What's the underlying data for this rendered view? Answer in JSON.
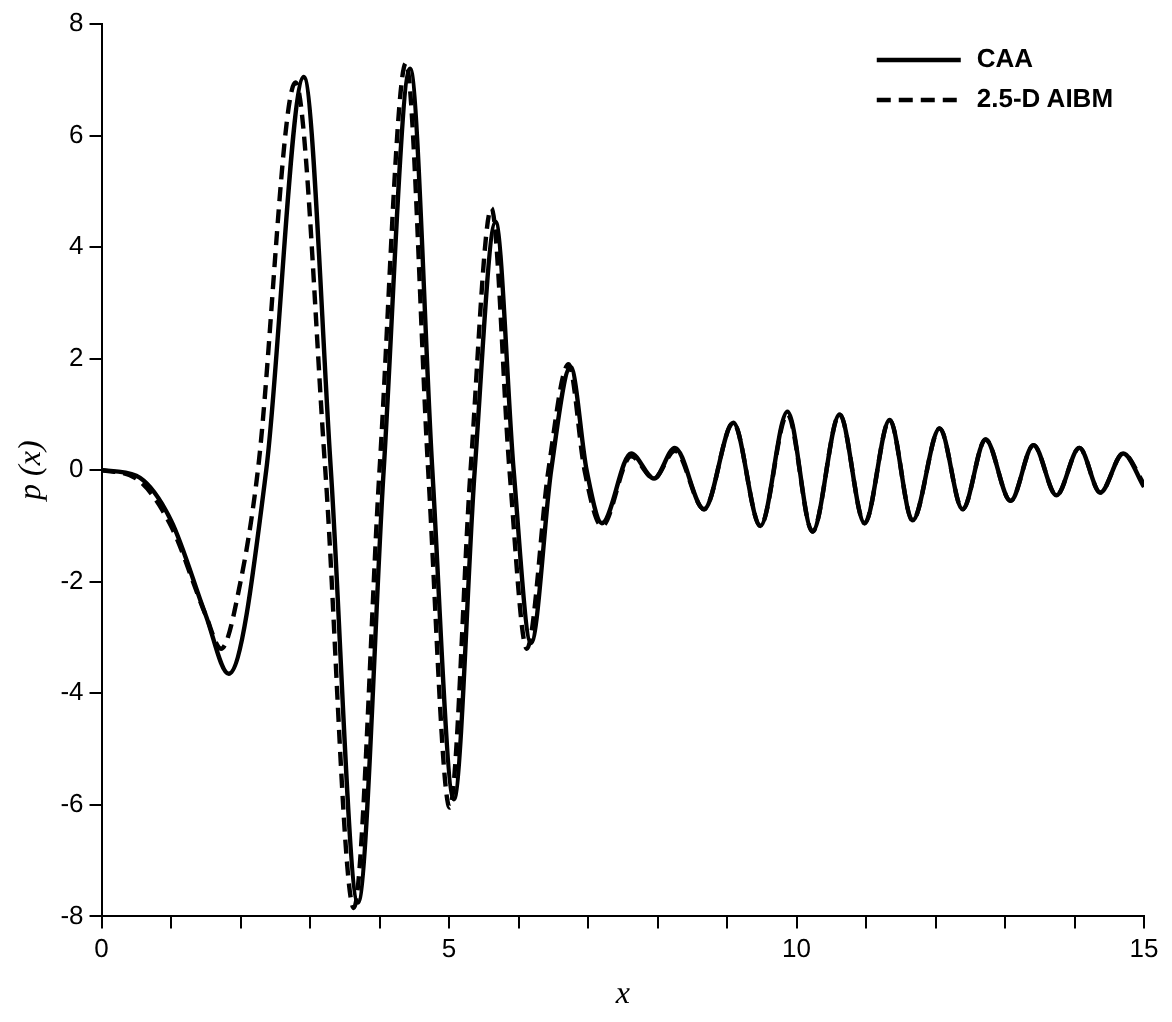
{
  "chart_data": {
    "type": "line",
    "xlabel": "x",
    "ylabel": "p (x)",
    "xlim": [
      0,
      15
    ],
    "ylim": [
      -8,
      8
    ],
    "xticks": [
      0,
      {
        "value": 1,
        "label": null
      },
      {
        "value": 2,
        "label": null
      },
      {
        "value": 3,
        "label": null
      },
      {
        "value": 4,
        "label": null
      },
      5,
      {
        "value": 6,
        "label": null
      },
      {
        "value": 7,
        "label": null
      },
      {
        "value": 8,
        "label": null
      },
      {
        "value": 9,
        "label": null
      },
      10,
      {
        "value": 11,
        "label": null
      },
      {
        "value": 12,
        "label": null
      },
      {
        "value": 13,
        "label": null
      },
      {
        "value": 14,
        "label": null
      },
      15
    ],
    "yticks": [
      -8,
      -6,
      -4,
      -2,
      0,
      2,
      4,
      6,
      8
    ],
    "grid": false,
    "legend": "top right",
    "marker": "none",
    "series": [
      {
        "name": "CAA",
        "color": "#000000",
        "line_style": "solid",
        "x": [
          0,
          0.5,
          1.0,
          1.5,
          1.83,
          2.37,
          2.91,
          3.3,
          3.69,
          4.06,
          4.44,
          4.76,
          5.07,
          5.37,
          5.67,
          5.93,
          6.18,
          6.47,
          6.75,
          6.98,
          7.2,
          7.62,
          7.95,
          8.25,
          8.67,
          9.09,
          9.48,
          9.87,
          10.23,
          10.62,
          10.98,
          11.34,
          11.67,
          12.06,
          12.39,
          12.72,
          13.08,
          13.41,
          13.74,
          14.07,
          14.37,
          14.7,
          15
        ],
        "values": [
          0,
          -0.1,
          -0.9,
          -2.6,
          -3.65,
          0,
          7.05,
          0,
          -7.75,
          0,
          7.2,
          0,
          -5.9,
          0,
          4.45,
          0,
          -3.1,
          0,
          1.85,
          0,
          -0.95,
          0.3,
          -0.15,
          0.4,
          -0.7,
          0.85,
          -1.0,
          1.05,
          -1.1,
          1.0,
          -0.95,
          0.9,
          -0.9,
          0.75,
          -0.7,
          0.55,
          -0.55,
          0.45,
          -0.45,
          0.4,
          -0.4,
          0.3,
          -0.3
        ]
      },
      {
        "name": "2.5-D AIBM",
        "color": "#000000",
        "line_style": "dashed",
        "x": [
          0,
          0.5,
          1.0,
          1.5,
          1.72,
          2.0,
          2.25,
          2.79,
          3.22,
          3.63,
          4.0,
          4.38,
          4.7,
          5.01,
          5.31,
          5.61,
          5.87,
          6.12,
          6.43,
          6.72,
          6.95,
          7.2,
          7.62,
          7.95,
          8.25,
          8.67,
          9.09,
          9.48,
          9.87,
          10.23,
          10.62,
          10.98,
          11.34,
          11.67,
          12.06,
          12.39,
          12.72,
          13.08,
          13.41,
          13.74,
          14.07,
          14.37,
          14.7,
          15
        ],
        "values": [
          0,
          -0.15,
          -1.0,
          -2.6,
          -3.2,
          -2.0,
          0,
          6.95,
          0,
          -7.85,
          0,
          7.3,
          0,
          -6.05,
          0,
          4.7,
          0,
          -3.2,
          0,
          1.9,
          0,
          -1.0,
          0.25,
          -0.15,
          0.35,
          -0.7,
          0.85,
          -1.0,
          1.0,
          -1.1,
          1.0,
          -0.95,
          0.9,
          -0.9,
          0.75,
          -0.7,
          0.55,
          -0.55,
          0.45,
          -0.45,
          0.4,
          -0.4,
          0.3,
          -0.25
        ]
      }
    ]
  }
}
